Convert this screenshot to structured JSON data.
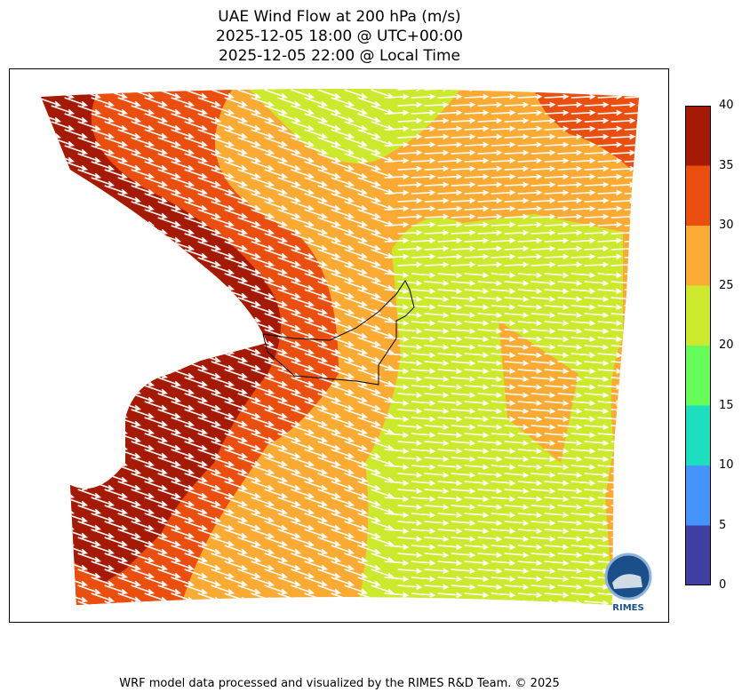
{
  "title": {
    "line1": "UAE Wind Flow at 200 hPa (m/s)",
    "line2": "2025-12-05 18:00 @ UTC+00:00",
    "line3": "2025-12-05 22:00 @ Local Time"
  },
  "colorbar": {
    "ticks": [
      "0",
      "5",
      "10",
      "15",
      "20",
      "25",
      "30",
      "35",
      "40"
    ],
    "colors": [
      "#3f3fa4",
      "#4594fc",
      "#1ddfbf",
      "#66fc5a",
      "#cde92e",
      "#fbab34",
      "#ea4f10",
      "#a51a05"
    ]
  },
  "logo": {
    "text": "RIMES",
    "ring_text": "Regional Integrated Multi-Hazard Early Warning System"
  },
  "footer": "WRF model data processed and visualized by the RIMES R&D Team. © 2025",
  "chart_data": {
    "type": "map",
    "title": "UAE Wind Flow at 200 hPa (m/s)",
    "variable": "wind speed with wind vectors",
    "colorbar_range": [
      0,
      40
    ],
    "colorbar_levels": [
      0,
      5,
      10,
      15,
      20,
      25,
      30,
      35,
      40
    ],
    "dominant_speeds": {
      "west": "30-40",
      "central": "25-30",
      "east": "20-25",
      "northeast": "30-35"
    },
    "wind_direction": "westerly / west-northwesterly"
  }
}
